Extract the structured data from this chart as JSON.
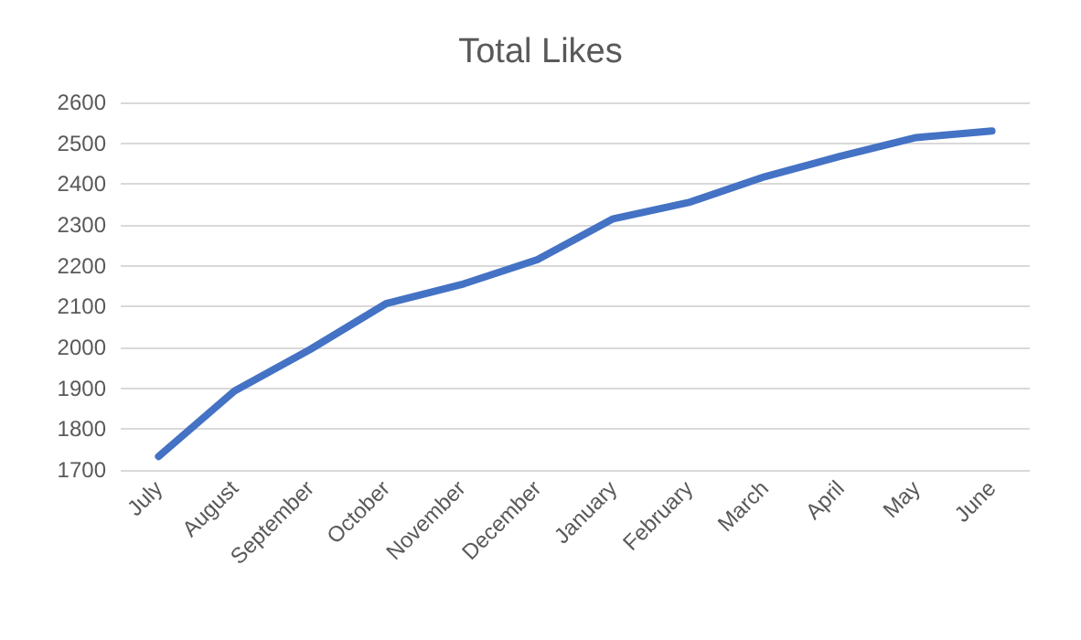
{
  "chart_data": {
    "type": "line",
    "title": "Total Likes",
    "categories": [
      "July",
      "August",
      "September",
      "October",
      "November",
      "December",
      "January",
      "February",
      "March",
      "April",
      "May",
      "June"
    ],
    "series": [
      {
        "color": "#4472c4",
        "values": [
          1733,
          1893,
          1995,
          2107,
          2154,
          2215,
          2315,
          2355,
          2418,
          2468,
          2514,
          2530
        ]
      }
    ],
    "ylim": [
      1700,
      2600
    ],
    "yticks": [
      1700,
      1800,
      1900,
      2000,
      2100,
      2200,
      2300,
      2400,
      2500,
      2600
    ],
    "grid": "y",
    "marker": "none",
    "line_style": "solid"
  }
}
